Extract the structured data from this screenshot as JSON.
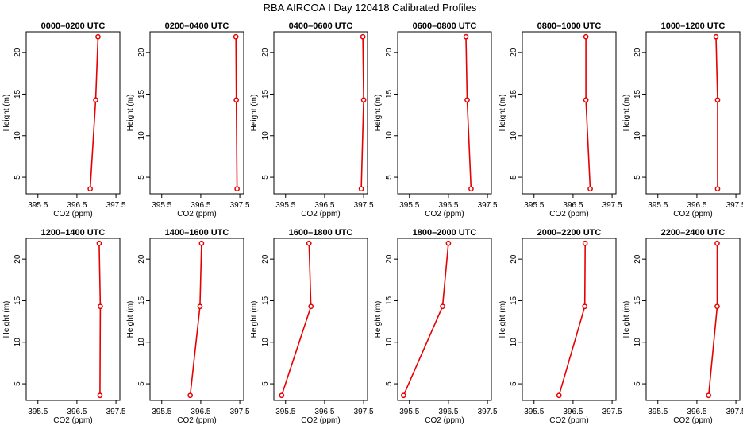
{
  "figure": {
    "title": "RBA AIRCOA I  Day 120418  Calibrated Profiles"
  },
  "chart_data": [
    {
      "type": "line",
      "title": "0000–0200 UTC",
      "xlabel": "CO2 (ppm)",
      "ylabel": "Height (m)",
      "xlim": [
        395.2,
        397.6
      ],
      "ylim": [
        3,
        22.5
      ],
      "xticks": [
        "395.5",
        "396.5",
        "397.5"
      ],
      "yticks": [
        "5",
        "10",
        "15",
        "20"
      ],
      "x": [
        397.04,
        396.98,
        396.84
      ],
      "y": [
        21.9,
        14.3,
        3.6
      ],
      "color": "#e60000"
    },
    {
      "type": "line",
      "title": "0200–0400 UTC",
      "xlabel": "CO2 (ppm)",
      "ylabel": "Height (m)",
      "xlim": [
        395.2,
        397.6
      ],
      "ylim": [
        3,
        22.5
      ],
      "xticks": [
        "395.5",
        "396.5",
        "397.5"
      ],
      "yticks": [
        "5",
        "10",
        "15",
        "20"
      ],
      "x": [
        397.4,
        397.41,
        397.43
      ],
      "y": [
        21.9,
        14.3,
        3.6
      ],
      "color": "#e60000"
    },
    {
      "type": "line",
      "title": "0400–0600 UTC",
      "xlabel": "CO2 (ppm)",
      "ylabel": "Height (m)",
      "xlim": [
        395.2,
        397.6
      ],
      "ylim": [
        3,
        22.5
      ],
      "xticks": [
        "395.5",
        "396.5",
        "397.5"
      ],
      "yticks": [
        "5",
        "10",
        "15",
        "20"
      ],
      "x": [
        397.48,
        397.5,
        397.44
      ],
      "y": [
        21.9,
        14.3,
        3.6
      ],
      "color": "#e60000"
    },
    {
      "type": "line",
      "title": "0600–0800 UTC",
      "xlabel": "CO2 (ppm)",
      "ylabel": "Height (m)",
      "xlim": [
        395.2,
        397.6
      ],
      "ylim": [
        3,
        22.5
      ],
      "xticks": [
        "395.5",
        "396.5",
        "397.5"
      ],
      "yticks": [
        "5",
        "10",
        "15",
        "20"
      ],
      "x": [
        396.95,
        396.98,
        397.08
      ],
      "y": [
        21.9,
        14.3,
        3.6
      ],
      "color": "#e60000"
    },
    {
      "type": "line",
      "title": "0800–1000 UTC",
      "xlabel": "CO2 (ppm)",
      "ylabel": "Height (m)",
      "xlim": [
        395.2,
        397.6
      ],
      "ylim": [
        3,
        22.5
      ],
      "xticks": [
        "395.5",
        "396.5",
        "397.5"
      ],
      "yticks": [
        "5",
        "10",
        "15",
        "20"
      ],
      "x": [
        396.83,
        396.83,
        396.94
      ],
      "y": [
        21.9,
        14.3,
        3.6
      ],
      "color": "#e60000"
    },
    {
      "type": "line",
      "title": "1000–1200 UTC",
      "xlabel": "CO2 (ppm)",
      "ylabel": "Height (m)",
      "xlim": [
        395.2,
        397.6
      ],
      "ylim": [
        3,
        22.5
      ],
      "xticks": [
        "395.5",
        "396.5",
        "397.5"
      ],
      "yticks": [
        "5",
        "10",
        "15",
        "20"
      ],
      "x": [
        396.99,
        397.03,
        397.03
      ],
      "y": [
        21.9,
        14.3,
        3.6
      ],
      "color": "#e60000"
    },
    {
      "type": "line",
      "title": "1200–1400 UTC",
      "xlabel": "CO2 (ppm)",
      "ylabel": "Height (m)",
      "xlim": [
        395.2,
        397.6
      ],
      "ylim": [
        3,
        22.5
      ],
      "xticks": [
        "395.5",
        "396.5",
        "397.5"
      ],
      "yticks": [
        "5",
        "10",
        "15",
        "20"
      ],
      "x": [
        397.07,
        397.1,
        397.09
      ],
      "y": [
        21.9,
        14.3,
        3.6
      ],
      "color": "#e60000"
    },
    {
      "type": "line",
      "title": "1400–1600 UTC",
      "xlabel": "CO2 (ppm)",
      "ylabel": "Height (m)",
      "xlim": [
        395.2,
        397.6
      ],
      "ylim": [
        3,
        22.5
      ],
      "xticks": [
        "395.5",
        "396.5",
        "397.5"
      ],
      "yticks": [
        "5",
        "10",
        "15",
        "20"
      ],
      "x": [
        396.52,
        396.48,
        396.23
      ],
      "y": [
        21.9,
        14.3,
        3.6
      ],
      "color": "#e60000"
    },
    {
      "type": "line",
      "title": "1600–1800 UTC",
      "xlabel": "CO2 (ppm)",
      "ylabel": "Height (m)",
      "xlim": [
        395.2,
        397.6
      ],
      "ylim": [
        3,
        22.5
      ],
      "xticks": [
        "395.5",
        "396.5",
        "397.5"
      ],
      "yticks": [
        "5",
        "10",
        "15",
        "20"
      ],
      "x": [
        396.1,
        396.15,
        395.4
      ],
      "y": [
        21.9,
        14.3,
        3.6
      ],
      "color": "#e60000"
    },
    {
      "type": "line",
      "title": "1800–2000 UTC",
      "xlabel": "CO2 (ppm)",
      "ylabel": "Height (m)",
      "xlim": [
        395.2,
        397.6
      ],
      "ylim": [
        3,
        22.5
      ],
      "xticks": [
        "395.5",
        "396.5",
        "397.5"
      ],
      "yticks": [
        "5",
        "10",
        "15",
        "20"
      ],
      "x": [
        396.5,
        396.35,
        395.35
      ],
      "y": [
        21.9,
        14.3,
        3.6
      ],
      "color": "#e60000"
    },
    {
      "type": "line",
      "title": "2000–2200 UTC",
      "xlabel": "CO2 (ppm)",
      "ylabel": "Height (m)",
      "xlim": [
        395.2,
        397.6
      ],
      "ylim": [
        3,
        22.5
      ],
      "xticks": [
        "395.5",
        "396.5",
        "397.5"
      ],
      "yticks": [
        "5",
        "10",
        "15",
        "20"
      ],
      "x": [
        396.81,
        396.8,
        396.14
      ],
      "y": [
        21.9,
        14.3,
        3.6
      ],
      "color": "#e60000"
    },
    {
      "type": "line",
      "title": "2200–2400 UTC",
      "xlabel": "CO2 (ppm)",
      "ylabel": "Height (m)",
      "xlim": [
        395.2,
        397.6
      ],
      "ylim": [
        3,
        22.5
      ],
      "xticks": [
        "395.5",
        "396.5",
        "397.5"
      ],
      "yticks": [
        "5",
        "10",
        "15",
        "20"
      ],
      "x": [
        397.02,
        397.02,
        396.8
      ],
      "y": [
        21.9,
        14.3,
        3.6
      ],
      "color": "#e60000"
    }
  ]
}
